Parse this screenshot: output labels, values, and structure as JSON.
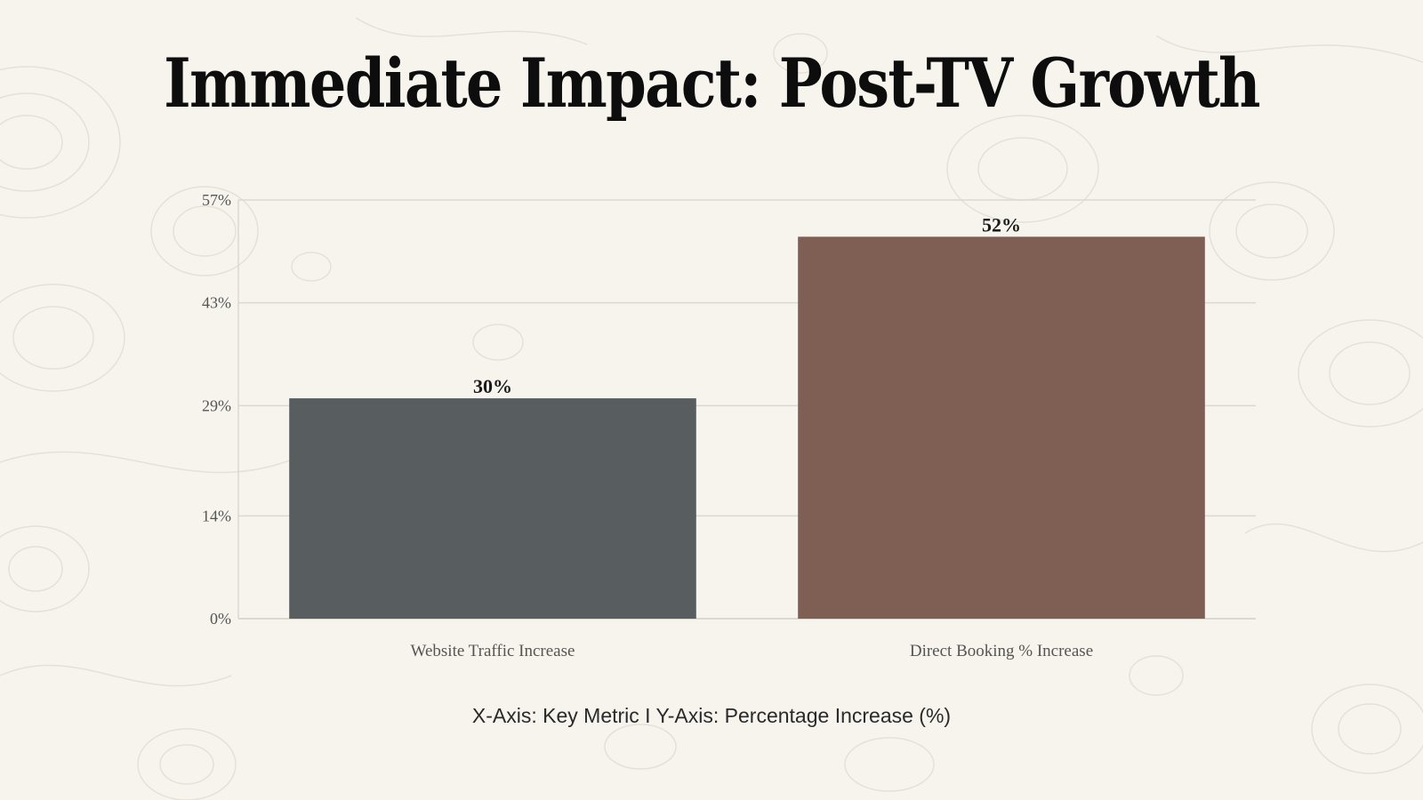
{
  "slide": {
    "title": "Immediate Impact: Post-TV Growth",
    "caption": "X-Axis: Key Metric I Y-Axis: Percentage Increase (%)"
  },
  "colors": {
    "background": "#f7f4ee",
    "contour": "#e6e1d7",
    "grid": "#dcd8d0",
    "bar1": "#585d60",
    "bar2": "#7f5f54",
    "axis_text": "#555555",
    "label_text": "#1a1a1a"
  },
  "chart_data": {
    "type": "bar",
    "title": "Immediate Impact: Post-TV Growth",
    "xlabel": "Key Metric",
    "ylabel": "Percentage Increase (%)",
    "categories": [
      "Website Traffic Increase",
      "Direct Booking % Increase"
    ],
    "values": [
      30,
      52
    ],
    "data_labels": [
      "30%",
      "52%"
    ],
    "yticks": [
      0,
      14,
      29,
      43,
      57
    ],
    "ytick_labels": [
      "0%",
      "14%",
      "29%",
      "43%",
      "57%"
    ],
    "ylim": [
      0,
      57
    ],
    "grid": true,
    "legend": "none"
  }
}
